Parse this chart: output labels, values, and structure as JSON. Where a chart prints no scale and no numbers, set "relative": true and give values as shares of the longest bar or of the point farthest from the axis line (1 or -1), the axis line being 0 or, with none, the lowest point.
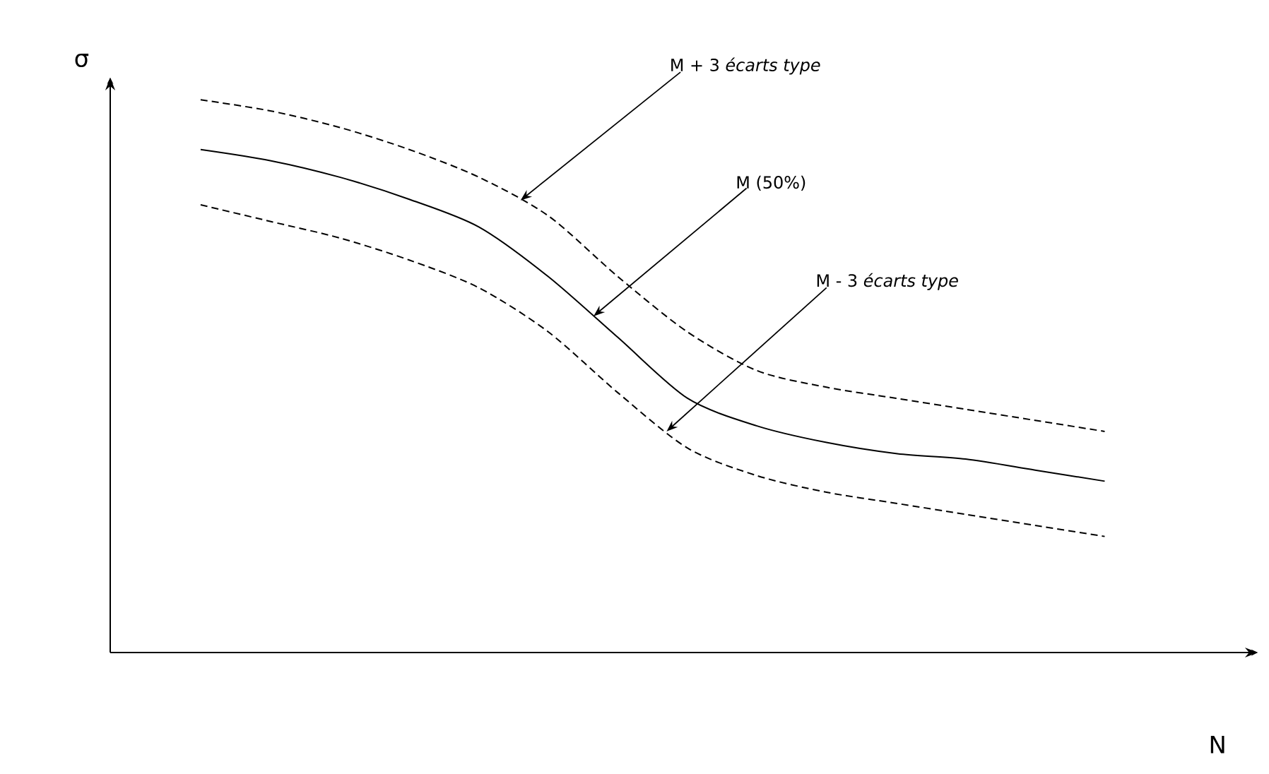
{
  "chart_data": {
    "type": "line",
    "relative": true,
    "xlabel": "N",
    "ylabel": "σ",
    "categories": [
      null,
      null,
      null,
      null,
      null,
      null,
      null,
      null,
      null,
      null,
      null,
      null,
      null,
      null
    ],
    "series": [
      {
        "color": "#000000",
        "line_style": "dashed",
        "values": [
          1.0,
          0.98,
          0.95,
          0.91,
          0.86,
          0.79,
          0.68,
          0.58,
          0.51,
          0.48,
          0.46,
          0.44,
          0.42,
          0.4
        ]
      },
      {
        "color": "#000000",
        "line_style": "solid",
        "values": [
          0.91,
          0.89,
          0.86,
          0.82,
          0.77,
          0.68,
          0.57,
          0.46,
          0.41,
          0.38,
          0.36,
          0.35,
          0.33,
          0.31
        ]
      },
      {
        "color": "#000000",
        "line_style": "dashed",
        "values": [
          0.81,
          0.78,
          0.75,
          0.71,
          0.66,
          0.58,
          0.47,
          0.37,
          0.32,
          0.29,
          0.27,
          0.25,
          0.23,
          0.21
        ]
      }
    ],
    "annotations": [
      "M + 3 *écarts type*",
      "M (50%)",
      "M - 3 *écarts type*"
    ],
    "marker": "none"
  }
}
